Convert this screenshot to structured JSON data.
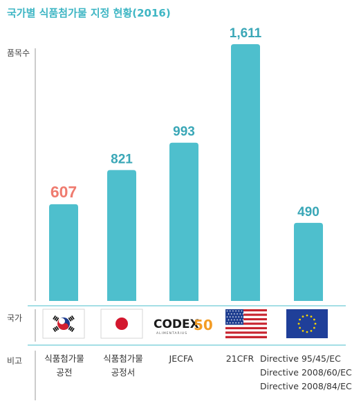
{
  "title": "국가별 식품첨가물 지정 현황(2016)",
  "row_labels": {
    "y_axis": "품목수",
    "country": "국가",
    "remark": "비고"
  },
  "colors": {
    "bar": "#4ebfcd",
    "label_default": "#3aa7b7",
    "label_highlight": "#ef7b6f",
    "axis": "#6ccad5"
  },
  "chart_data": {
    "type": "bar",
    "categories": [
      "Korea",
      "Japan",
      "JECFA",
      "USA",
      "EU"
    ],
    "values": [
      607,
      821,
      993,
      1611,
      490
    ],
    "value_labels": [
      "607",
      "821",
      "993",
      "1,611",
      "490"
    ],
    "highlight_index": 0,
    "title": "국가별 식품첨가물 지정 현황(2016)",
    "ylabel": "품목수",
    "xlabel": "국가",
    "ylim": [
      0,
      1650
    ],
    "grid": false
  },
  "flags": [
    {
      "icon": "korea-flag-icon"
    },
    {
      "icon": "japan-flag-icon"
    },
    {
      "icon": "codex-logo-icon",
      "logo_text": "CODEX",
      "logo_num": "50",
      "logo_sub": "ALIMENTARIUS"
    },
    {
      "icon": "usa-flag-icon"
    },
    {
      "icon": "eu-flag-icon"
    }
  ],
  "remarks": [
    {
      "lines": [
        "식품첨가물",
        "공전"
      ]
    },
    {
      "lines": [
        "식품첨가물",
        "공정서"
      ]
    },
    {
      "lines": [
        "JECFA"
      ]
    },
    {
      "lines": [
        "21CFR"
      ]
    },
    {
      "lines": [
        "Directive 95/45/EC",
        "Directive 2008/60/EC",
        "Directive 2008/84/EC"
      ]
    }
  ]
}
